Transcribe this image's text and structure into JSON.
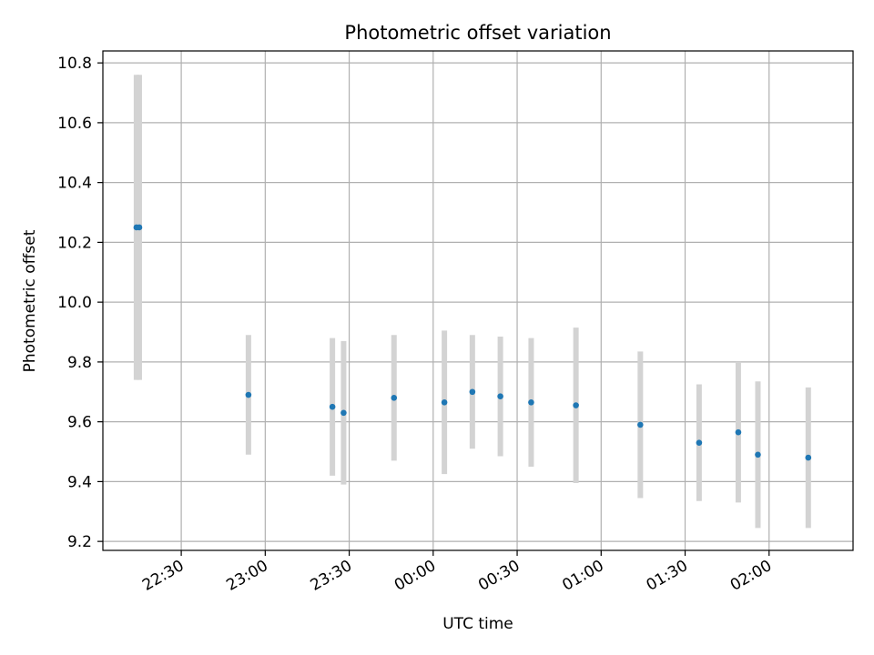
{
  "chart_data": {
    "type": "scatter",
    "title": "Photometric offset variation",
    "xlabel": "UTC time",
    "ylabel": "Photometric offset",
    "x_axis": {
      "kind": "time",
      "range": [
        "22:02",
        "02:30"
      ],
      "ticks": [
        "22:30",
        "23:00",
        "23:30",
        "00:00",
        "00:30",
        "01:00",
        "01:30",
        "02:00"
      ]
    },
    "y_axis": {
      "range": [
        9.17,
        10.84
      ],
      "ticks": [
        "9.2",
        "9.4",
        "9.6",
        "9.8",
        "10.0",
        "10.2",
        "10.4",
        "10.6",
        "10.8"
      ]
    },
    "grid": true,
    "colors": {
      "point": "#1f77b4",
      "errorbar": "#d3d3d3",
      "grid": "#b0b0b0"
    },
    "series": [
      {
        "points": [
          {
            "x": "22:14",
            "y": 10.25,
            "err": 0.51
          },
          {
            "x": "22:15",
            "y": 10.25,
            "err": 0.51
          },
          {
            "x": "22:54",
            "y": 9.69,
            "err": 0.2
          },
          {
            "x": "23:24",
            "y": 9.65,
            "err": 0.23
          },
          {
            "x": "23:28",
            "y": 9.63,
            "err": 0.24
          },
          {
            "x": "23:46",
            "y": 9.68,
            "err": 0.21
          },
          {
            "x": "00:04",
            "y": 9.665,
            "err": 0.24
          },
          {
            "x": "00:14",
            "y": 9.7,
            "err": 0.19
          },
          {
            "x": "00:24",
            "y": 9.685,
            "err": 0.2
          },
          {
            "x": "00:35",
            "y": 9.665,
            "err": 0.215
          },
          {
            "x": "00:51",
            "y": 9.655,
            "err": 0.26
          },
          {
            "x": "01:14",
            "y": 9.59,
            "err": 0.245
          },
          {
            "x": "01:35",
            "y": 9.53,
            "err": 0.195
          },
          {
            "x": "01:49",
            "y": 9.565,
            "err": 0.235
          },
          {
            "x": "01:56",
            "y": 9.49,
            "err": 0.245
          },
          {
            "x": "02:14",
            "y": 9.48,
            "err": 0.235
          }
        ]
      }
    ]
  }
}
